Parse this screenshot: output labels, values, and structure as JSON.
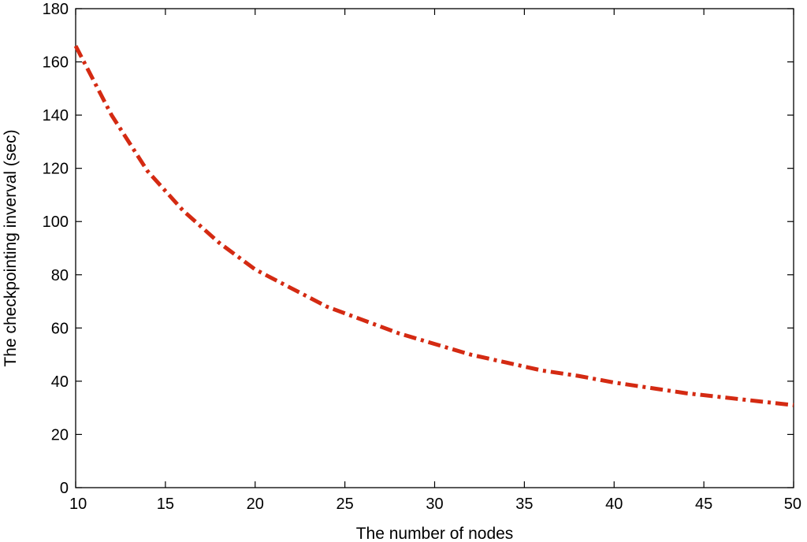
{
  "chart_data": {
    "type": "line",
    "title": "",
    "xlabel": "The number of nodes",
    "ylabel": "The checkpointing inverval (sec)",
    "xlim": [
      10,
      50
    ],
    "ylim": [
      0,
      180
    ],
    "x_ticks": [
      10,
      15,
      20,
      25,
      30,
      35,
      40,
      45,
      50
    ],
    "y_ticks": [
      0,
      20,
      40,
      60,
      80,
      100,
      120,
      140,
      160,
      180
    ],
    "x_tick_labels": [
      "10",
      "15",
      "20",
      "25",
      "30",
      "35",
      "40",
      "45",
      "50"
    ],
    "y_tick_labels": [
      "0",
      "20",
      "40",
      "60",
      "80",
      "100",
      "120",
      "140",
      "160",
      "180"
    ],
    "grid": false,
    "legend": "none",
    "line_style": "dash-dot",
    "series": [
      {
        "color": "#d42a12",
        "x": [
          10,
          12,
          14,
          16,
          18,
          20,
          22,
          24,
          26,
          28,
          30,
          32,
          34,
          36,
          38,
          40,
          42,
          44,
          46,
          48,
          50
        ],
        "values": [
          166,
          140,
          119,
          104,
          92,
          82,
          75,
          68,
          63,
          58,
          54,
          50,
          47,
          44,
          42,
          39.5,
          37.5,
          35.5,
          34,
          32.5,
          31
        ]
      }
    ]
  }
}
